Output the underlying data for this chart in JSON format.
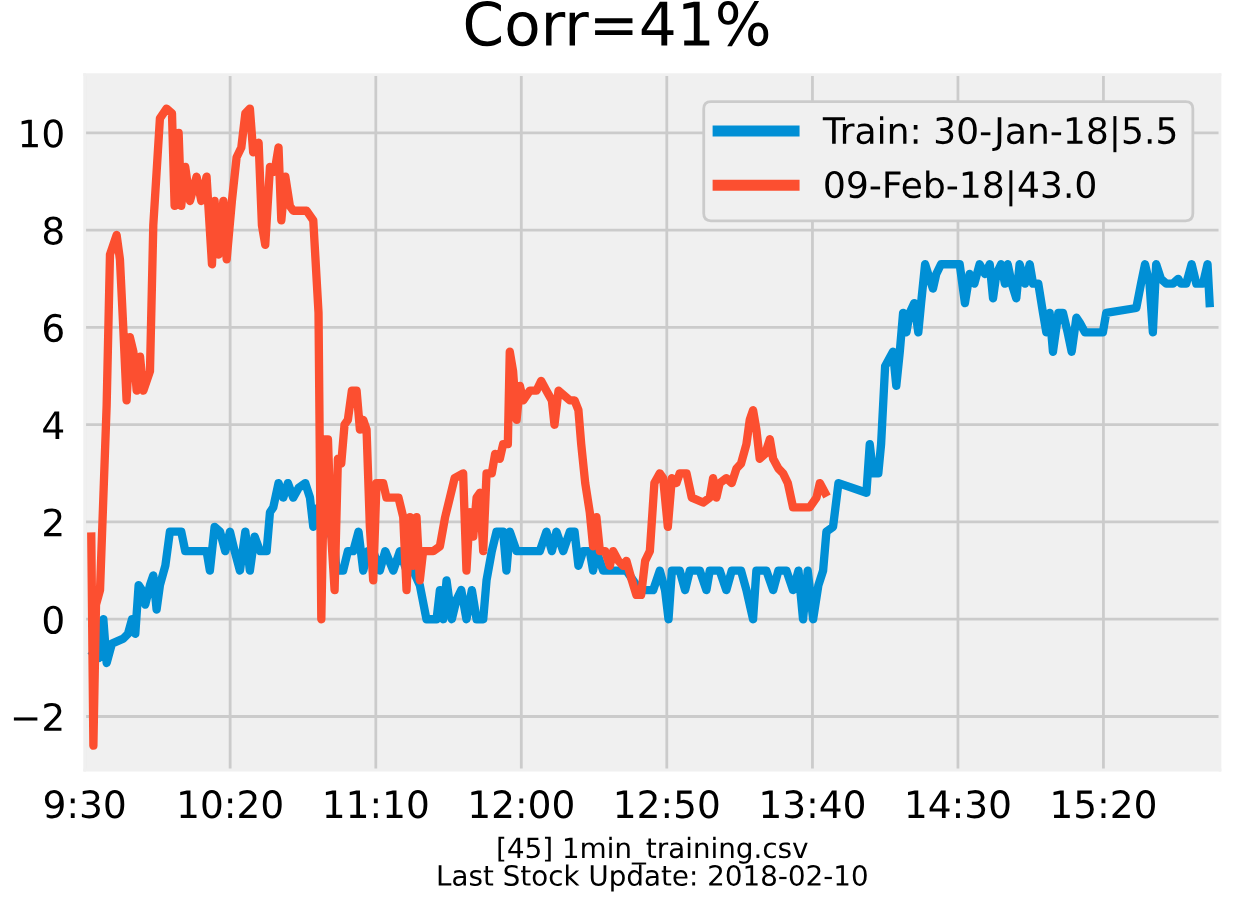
{
  "chart_data": {
    "type": "line",
    "title": "Corr=41%",
    "xlabel": "[45] 1min_training.csv\nLast Stock Update: 2018-02-10",
    "xlim": [
      9.5,
      16.0
    ],
    "xticks": [
      {
        "value": 9.5,
        "label": "9:30"
      },
      {
        "value": 10.333,
        "label": "10:20"
      },
      {
        "value": 11.167,
        "label": "11:10"
      },
      {
        "value": 12.0,
        "label": "12:00"
      },
      {
        "value": 12.833,
        "label": "12:50"
      },
      {
        "value": 13.667,
        "label": "13:40"
      },
      {
        "value": 14.5,
        "label": "14:30"
      },
      {
        "value": 15.333,
        "label": "15:20"
      }
    ],
    "ylim": [
      -3.1,
      11.2
    ],
    "yticks": [
      {
        "value": -2,
        "label": "−2"
      },
      0,
      2,
      4,
      6,
      8,
      10
    ],
    "grid": true,
    "legend": "top right",
    "series": [
      {
        "name": "Train: 30-Jan-18|5.5",
        "color": "#008fd5",
        "x": [
          9.55,
          9.58,
          9.607,
          9.626,
          9.656,
          9.721,
          9.748,
          9.771,
          9.79,
          9.809,
          9.828,
          9.847,
          9.874,
          9.893,
          9.912,
          9.931,
          9.962,
          9.988,
          10.053,
          10.076,
          10.198,
          10.217,
          10.244,
          10.275,
          10.305,
          10.332,
          10.359,
          10.389,
          10.42,
          10.446,
          10.473,
          10.504,
          10.542,
          10.561,
          10.58,
          10.61,
          10.637,
          10.664,
          10.694,
          10.725,
          10.763,
          10.79,
          10.809,
          10.839,
          10.866,
          10.893,
          10.923,
          10.942,
          10.98,
          11.007,
          11.038,
          11.068,
          11.095,
          11.122,
          11.152,
          11.19,
          11.221,
          11.267,
          11.305,
          11.343,
          11.381,
          11.419,
          11.457,
          11.496,
          11.515,
          11.534,
          11.553,
          11.572,
          11.602,
          11.629,
          11.656,
          11.686,
          11.717,
          11.744,
          11.782,
          11.801,
          11.831,
          11.858,
          11.896,
          11.915,
          11.934,
          11.973,
          12.106,
          12.144,
          12.175,
          12.201,
          12.24,
          12.278,
          12.305,
          12.327,
          12.354,
          12.392,
          12.411,
          12.43,
          12.469,
          12.602,
          12.659,
          12.698,
          12.755,
          12.793,
          12.823,
          12.843,
          12.862,
          12.907,
          12.938,
          12.965,
          13.022,
          13.06,
          13.079,
          13.136,
          13.174,
          13.205,
          13.258,
          13.289,
          13.327,
          13.346,
          13.403,
          13.442,
          13.472,
          13.518,
          13.556,
          13.587,
          13.613,
          13.64,
          13.671,
          13.701,
          13.728,
          13.747,
          13.785,
          13.816,
          13.976,
          13.995,
          14.014,
          14.044,
          14.06,
          14.083,
          14.128,
          14.147,
          14.167,
          14.186,
          14.205,
          14.224,
          14.25,
          14.273,
          14.289,
          14.312,
          14.338,
          14.357,
          14.376,
          14.403,
          14.51,
          14.54,
          14.567,
          14.594,
          14.624,
          14.655,
          14.682,
          14.701,
          14.72,
          14.747,
          14.769,
          14.785,
          14.808,
          14.834,
          14.853,
          14.884,
          14.911,
          14.93,
          14.96,
          14.987,
          15.006,
          15.025,
          15.044,
          15.075,
          15.101,
          15.128,
          15.151,
          15.178,
          15.197,
          15.227,
          15.33,
          15.349,
          15.521,
          15.548,
          15.571,
          15.597,
          15.616,
          15.635,
          15.662,
          15.693,
          15.731,
          15.761,
          15.777,
          15.807,
          15.838,
          15.865,
          15.903,
          15.929,
          15.941
        ],
        "values": [
          -0.7,
          -0.8,
          0.0,
          -0.9,
          -0.5,
          -0.4,
          -0.3,
          0.0,
          -0.3,
          0.7,
          0.6,
          0.3,
          0.7,
          0.9,
          0.2,
          0.7,
          1.1,
          1.8,
          1.8,
          1.4,
          1.4,
          1.0,
          1.9,
          1.8,
          1.4,
          1.8,
          1.4,
          1.0,
          1.8,
          1.0,
          1.7,
          1.4,
          1.4,
          2.2,
          2.3,
          2.8,
          2.5,
          2.8,
          2.5,
          2.7,
          2.8,
          2.5,
          1.9,
          2.3,
          1.7,
          1.9,
          1.8,
          1.0,
          1.0,
          1.4,
          1.4,
          1.8,
          1.0,
          1.4,
          1.4,
          1.0,
          1.4,
          1.0,
          1.4,
          1.0,
          1.0,
          0.7,
          0.0,
          0.0,
          0.0,
          0.6,
          0.0,
          0.8,
          0.0,
          0.4,
          0.6,
          0.0,
          0.6,
          0.0,
          0.0,
          0.8,
          1.4,
          1.8,
          1.8,
          1.0,
          1.8,
          1.4,
          1.4,
          1.8,
          1.4,
          1.8,
          1.4,
          1.8,
          1.8,
          1.1,
          1.4,
          1.4,
          1.0,
          1.4,
          1.0,
          1.0,
          0.7,
          0.6,
          0.6,
          1.0,
          0.6,
          0.0,
          1.0,
          1.0,
          0.6,
          1.0,
          1.0,
          0.6,
          1.0,
          1.0,
          0.6,
          1.0,
          1.0,
          0.6,
          0.0,
          1.0,
          1.0,
          0.6,
          1.0,
          1.0,
          0.6,
          1.0,
          0.0,
          1.0,
          0.0,
          0.7,
          1.0,
          1.8,
          1.9,
          2.8,
          2.6,
          3.6,
          3.0,
          3.0,
          3.6,
          5.2,
          5.5,
          4.8,
          5.5,
          6.3,
          5.9,
          6.3,
          6.5,
          5.9,
          6.5,
          7.3,
          7.0,
          6.8,
          7.1,
          7.3,
          7.3,
          6.5,
          7.1,
          6.9,
          7.3,
          7.1,
          7.3,
          6.6,
          7.1,
          7.3,
          6.9,
          7.3,
          6.9,
          6.6,
          7.3,
          6.9,
          7.3,
          6.9,
          6.9,
          6.3,
          5.9,
          6.3,
          5.5,
          6.3,
          6.3,
          5.9,
          5.5,
          6.2,
          6.1,
          5.9,
          5.9,
          6.3,
          6.4,
          6.9,
          7.3,
          6.9,
          5.9,
          7.3,
          7.0,
          6.9,
          6.9,
          7.0,
          6.9,
          6.9,
          7.3,
          6.9,
          6.9,
          7.3,
          6.5
        ]
      },
      {
        "name": "09-Feb-18|43.0",
        "color": "#fc4f30",
        "x": [
          9.538,
          9.55,
          9.565,
          9.588,
          9.626,
          9.645,
          9.664,
          9.683,
          9.702,
          9.721,
          9.74,
          9.759,
          9.779,
          9.798,
          9.817,
          9.836,
          9.874,
          9.893,
          9.931,
          9.969,
          10.0,
          10.015,
          10.038,
          10.053,
          10.076,
          10.103,
          10.141,
          10.168,
          10.198,
          10.229,
          10.244,
          10.267,
          10.294,
          10.313,
          10.343,
          10.37,
          10.397,
          10.42,
          10.446,
          10.465,
          10.496,
          10.515,
          10.534,
          10.561,
          10.587,
          10.61,
          10.626,
          10.649,
          10.675,
          10.694,
          10.771,
          10.809,
          10.839,
          10.855,
          10.874,
          10.893,
          10.912,
          10.931,
          10.95,
          10.969,
          10.988,
          11.007,
          11.03,
          11.057,
          11.076,
          11.095,
          11.114,
          11.133,
          11.152,
          11.171,
          11.209,
          11.228,
          11.297,
          11.324,
          11.343,
          11.362,
          11.381,
          11.4,
          11.419,
          11.438,
          11.496,
          11.534,
          11.564,
          11.591,
          11.618,
          11.667,
          11.686,
          11.705,
          11.725,
          11.744,
          11.763,
          11.782,
          11.801,
          11.831,
          11.85,
          11.877,
          11.896,
          11.923,
          11.934,
          11.953,
          11.973,
          11.992,
          12.011,
          12.049,
          12.087,
          12.114,
          12.144,
          12.175,
          12.19,
          12.213,
          12.278,
          12.305,
          12.327,
          12.343,
          12.366,
          12.392,
          12.411,
          12.43,
          12.45,
          12.48,
          12.507,
          12.526,
          12.556,
          12.583,
          12.602,
          12.633,
          12.659,
          12.686,
          12.709,
          12.736,
          12.762,
          12.793,
          12.812,
          12.839,
          12.862,
          12.888,
          12.907,
          12.946,
          12.976,
          13.041,
          13.079,
          13.098,
          13.117,
          13.136,
          13.174,
          13.205,
          13.232,
          13.258,
          13.289,
          13.308,
          13.327,
          13.346,
          13.365,
          13.396,
          13.423,
          13.442,
          13.472,
          13.499,
          13.526,
          13.556,
          13.651,
          13.69,
          13.709,
          13.739
        ],
        "values": [
          1.7,
          -2.6,
          0.3,
          0.6,
          4.4,
          7.5,
          7.7,
          7.9,
          7.4,
          6.0,
          4.5,
          5.8,
          5.5,
          4.7,
          5.4,
          4.7,
          5.1,
          8.1,
          10.3,
          10.5,
          10.4,
          8.5,
          10.0,
          8.5,
          9.3,
          8.6,
          9.1,
          8.6,
          9.1,
          7.3,
          8.6,
          7.5,
          8.6,
          7.4,
          8.6,
          9.5,
          9.7,
          10.4,
          10.5,
          9.6,
          9.8,
          8.1,
          7.7,
          9.3,
          9.2,
          9.7,
          8.2,
          9.1,
          8.5,
          8.4,
          8.4,
          8.2,
          6.3,
          0.0,
          3.7,
          3.7,
          1.7,
          0.6,
          3.3,
          3.2,
          4.0,
          4.1,
          4.7,
          4.7,
          3.9,
          4.1,
          3.9,
          1.9,
          0.8,
          2.8,
          2.8,
          2.5,
          2.5,
          2.1,
          0.6,
          2.1,
          1.1,
          2.1,
          0.8,
          1.4,
          1.4,
          1.5,
          2.1,
          2.5,
          2.9,
          3.0,
          1.0,
          2.2,
          1.7,
          2.5,
          2.6,
          1.4,
          3.0,
          3.0,
          3.4,
          3.3,
          3.6,
          3.6,
          5.5,
          5.1,
          4.1,
          4.8,
          4.5,
          4.7,
          4.7,
          4.9,
          4.7,
          4.5,
          4.0,
          4.7,
          4.5,
          4.5,
          4.3,
          3.6,
          2.8,
          2.2,
          1.5,
          2.1,
          1.4,
          1.4,
          1.1,
          1.4,
          1.2,
          1.1,
          1.2,
          0.8,
          0.5,
          0.5,
          1.2,
          1.4,
          2.8,
          3.0,
          2.9,
          1.9,
          2.9,
          2.8,
          3.0,
          3.0,
          2.5,
          2.4,
          2.5,
          2.9,
          2.5,
          2.8,
          2.9,
          2.8,
          3.1,
          3.2,
          3.6,
          4.1,
          4.3,
          3.9,
          3.3,
          3.4,
          3.7,
          3.3,
          3.1,
          3.0,
          2.8,
          2.3,
          2.3,
          2.5,
          2.8,
          2.6
        ]
      }
    ]
  }
}
